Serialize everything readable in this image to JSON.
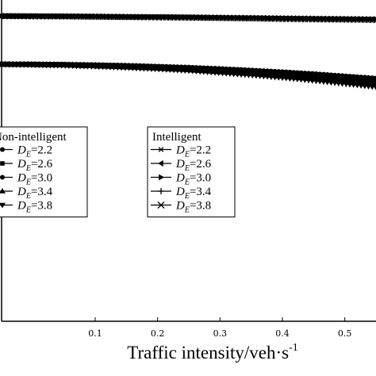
{
  "chart_data": {
    "type": "line",
    "xlabel": "Traffic intensity/veh·s",
    "xlabel_superscript": "-1",
    "xlim": [
      -0.05,
      0.55
    ],
    "x_ticks": [
      "0.1",
      "0.2",
      "0.3",
      "0.4",
      "0.5"
    ],
    "grid": false,
    "legends": [
      {
        "title": "Non-intelligent",
        "placement": "left-middle",
        "entries": [
          "D_E=2.2",
          "D_E=2.6",
          "D_E=3.0",
          "D_E=3.4",
          "D_E=3.8"
        ]
      },
      {
        "title": "Intelligent",
        "placement": "center-middle",
        "entries": [
          "D_E=2.2",
          "D_E=2.6",
          "D_E=3.0",
          "D_E=3.4",
          "D_E=3.8"
        ]
      }
    ],
    "legend_prefix": "D",
    "legend_subscript": "E",
    "legend_values": [
      "2.2",
      "2.6",
      "3.0",
      "3.4",
      "3.8"
    ],
    "x": [
      -0.05,
      0.0,
      0.05,
      0.1,
      0.15,
      0.2,
      0.25,
      0.3,
      0.35,
      0.4,
      0.45,
      0.5,
      0.55
    ],
    "series": [
      {
        "name": "Intelligent D_E=2.2",
        "group": "intelligent",
        "marker": "asterisk",
        "values": [
          0.95,
          0.95,
          0.95,
          0.949,
          0.949,
          0.948,
          0.948,
          0.947,
          0.946,
          0.945,
          0.944,
          0.943,
          0.942
        ]
      },
      {
        "name": "Intelligent D_E=2.6",
        "group": "intelligent",
        "marker": "triangle-left",
        "values": [
          0.95,
          0.95,
          0.95,
          0.949,
          0.948,
          0.948,
          0.947,
          0.946,
          0.945,
          0.944,
          0.943,
          0.942,
          0.941
        ]
      },
      {
        "name": "Intelligent D_E=3.0",
        "group": "intelligent",
        "marker": "triangle-right",
        "values": [
          0.95,
          0.95,
          0.949,
          0.949,
          0.948,
          0.947,
          0.946,
          0.945,
          0.944,
          0.943,
          0.942,
          0.941,
          0.94
        ]
      },
      {
        "name": "Intelligent D_E=3.4",
        "group": "intelligent",
        "marker": "plus",
        "values": [
          0.95,
          0.95,
          0.949,
          0.948,
          0.947,
          0.947,
          0.946,
          0.944,
          0.943,
          0.942,
          0.941,
          0.94,
          0.939
        ]
      },
      {
        "name": "Intelligent D_E=3.8",
        "group": "intelligent",
        "marker": "x",
        "values": [
          0.95,
          0.949,
          0.949,
          0.948,
          0.947,
          0.946,
          0.945,
          0.944,
          0.943,
          0.941,
          0.94,
          0.939,
          0.938
        ]
      },
      {
        "name": "Non-intelligent D_E=2.2",
        "group": "non-intelligent",
        "marker": "circle",
        "values": [
          0.8,
          0.8,
          0.799,
          0.798,
          0.796,
          0.793,
          0.79,
          0.786,
          0.781,
          0.776,
          0.77,
          0.763,
          0.756
        ]
      },
      {
        "name": "Non-intelligent D_E=2.6",
        "group": "non-intelligent",
        "marker": "square",
        "values": [
          0.8,
          0.8,
          0.799,
          0.797,
          0.795,
          0.792,
          0.788,
          0.783,
          0.778,
          0.772,
          0.765,
          0.757,
          0.749
        ]
      },
      {
        "name": "Non-intelligent D_E=3.0",
        "group": "non-intelligent",
        "marker": "circle",
        "values": [
          0.8,
          0.799,
          0.798,
          0.796,
          0.793,
          0.79,
          0.786,
          0.781,
          0.775,
          0.768,
          0.76,
          0.752,
          0.743
        ]
      },
      {
        "name": "Non-intelligent D_E=3.4",
        "group": "non-intelligent",
        "marker": "triangle-up",
        "values": [
          0.8,
          0.799,
          0.798,
          0.795,
          0.792,
          0.788,
          0.783,
          0.777,
          0.771,
          0.763,
          0.755,
          0.746,
          0.736
        ]
      },
      {
        "name": "Non-intelligent D_E=3.8",
        "group": "non-intelligent",
        "marker": "triangle-down",
        "values": [
          0.8,
          0.799,
          0.797,
          0.794,
          0.79,
          0.786,
          0.781,
          0.774,
          0.767,
          0.759,
          0.75,
          0.74,
          0.73
        ]
      }
    ],
    "ylim": [
      0.0,
      1.0
    ],
    "colors": {
      "line": "#000000",
      "background": "#ffffff"
    }
  }
}
